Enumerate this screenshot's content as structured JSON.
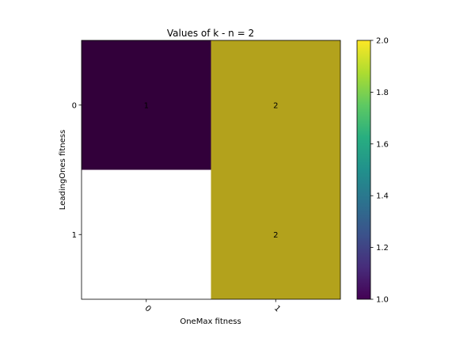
{
  "chart_data": {
    "type": "heatmap",
    "title": "Values of k - n = 2",
    "xlabel": "OneMax fitness",
    "ylabel": "LeadingOnes fitness",
    "x_categories": [
      "0",
      "1"
    ],
    "y_categories": [
      "0",
      "1"
    ],
    "values": [
      [
        1,
        2
      ],
      [
        null,
        2
      ]
    ],
    "cell_labels": [
      [
        "1",
        "2"
      ],
      [
        "",
        "2"
      ]
    ],
    "missing_color": "#ffffff",
    "colormap": "viridis",
    "colorbar": {
      "vmin": 1.0,
      "vmax": 2.0,
      "ticks": [
        "1.0",
        "1.2",
        "1.4",
        "1.6",
        "1.8",
        "2.0"
      ]
    },
    "x_tick_rotation_deg": 45
  }
}
